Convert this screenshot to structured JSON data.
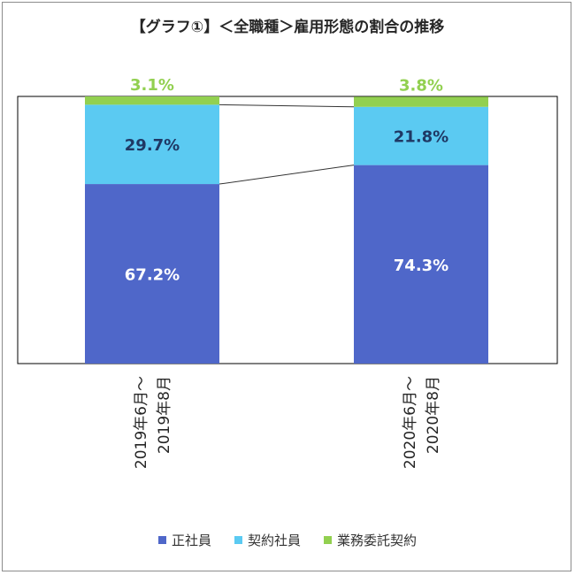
{
  "title": "【グラフ①】＜全職種＞雇用形態の割合の推移",
  "colors": {
    "seishain": "#4f67c9",
    "keiyaku": "#5bcaf2",
    "gyomu": "#92d050",
    "valuelabel_dark": "#1f3864",
    "valuelabel_light": "#ffffff",
    "top_label": "#92d050"
  },
  "chart_data": {
    "type": "bar",
    "stacked": true,
    "normalized": true,
    "title": "【グラフ①】＜全職種＞雇用形態の割合の推移",
    "categories": [
      [
        "2019年6月～",
        "2019年8月"
      ],
      [
        "2020年6月～",
        "2020年8月"
      ]
    ],
    "series": [
      {
        "name": "正社員",
        "values": [
          67.2,
          74.3
        ],
        "labels": [
          "67.2%",
          "74.3%"
        ]
      },
      {
        "name": "契約社員",
        "values": [
          29.7,
          21.8
        ],
        "labels": [
          "29.7%",
          "21.8%"
        ]
      },
      {
        "name": "業務委託契約",
        "values": [
          3.1,
          3.8
        ],
        "labels": [
          "3.1%",
          "3.8%"
        ]
      }
    ],
    "ylim": [
      0,
      100
    ],
    "legend": "bottom",
    "grid": false,
    "series_lines": true
  }
}
